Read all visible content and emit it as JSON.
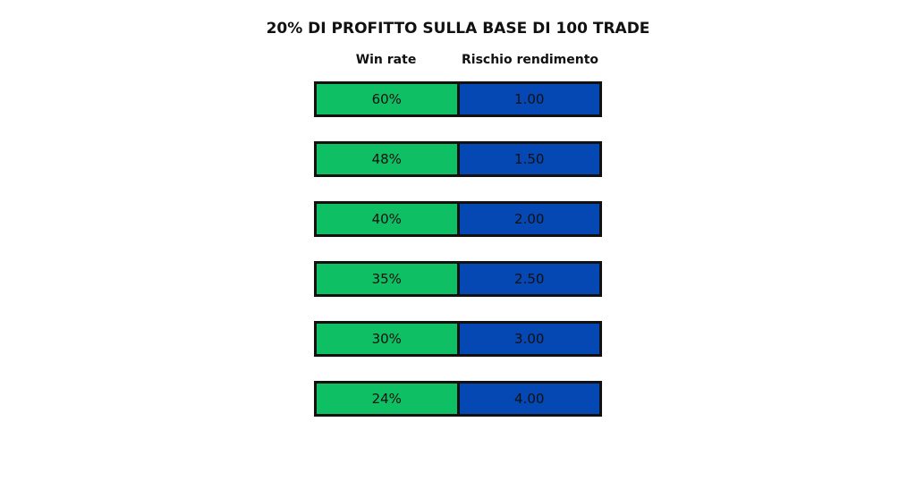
{
  "header": {
    "title": "20% DI PROFITTO SULLA BASE DI 100 TRADE"
  },
  "table": {
    "columns": [
      "Win rate",
      "Rischio rendimento"
    ],
    "rows": [
      [
        "60%",
        "1.00"
      ],
      [
        "48%",
        "1.50"
      ],
      [
        "40%",
        "2.00"
      ],
      [
        "35%",
        "2.50"
      ],
      [
        "30%",
        "3.00"
      ],
      [
        "24%",
        "4.00"
      ]
    ]
  }
}
